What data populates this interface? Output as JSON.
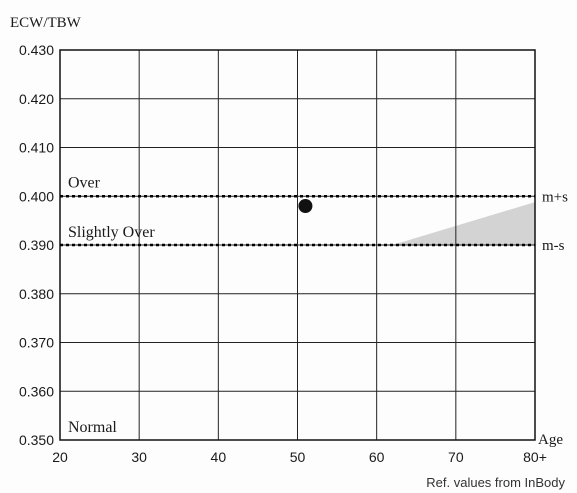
{
  "chart_data": {
    "type": "scatter",
    "title": "",
    "ylabel": "ECW/TBW",
    "xlabel": "Age",
    "xlim": [
      20,
      80
    ],
    "ylim": [
      0.35,
      0.43
    ],
    "x_ticks": [
      "20",
      "30",
      "40",
      "50",
      "60",
      "70",
      "80+"
    ],
    "y_ticks": [
      "0.430",
      "0.420",
      "0.410",
      "0.400",
      "0.390",
      "0.380",
      "0.370",
      "0.360",
      "0.350"
    ],
    "grid": true,
    "reference_lines": [
      {
        "label": "m+s",
        "y": 0.4
      },
      {
        "label": "m-s",
        "y": 0.39
      }
    ],
    "zones": [
      {
        "label": "Over"
      },
      {
        "label": "Slightly Over"
      },
      {
        "label": "Normal"
      }
    ],
    "shaded_band": {
      "x": [
        62,
        80
      ],
      "y_lower": [
        0.39,
        0.39
      ],
      "y_upper": [
        0.39,
        0.3988
      ],
      "color": "#d3d3d3"
    },
    "points": [
      {
        "x": 51,
        "y": 0.398
      }
    ],
    "footnote": "Ref. values  from InBody"
  }
}
